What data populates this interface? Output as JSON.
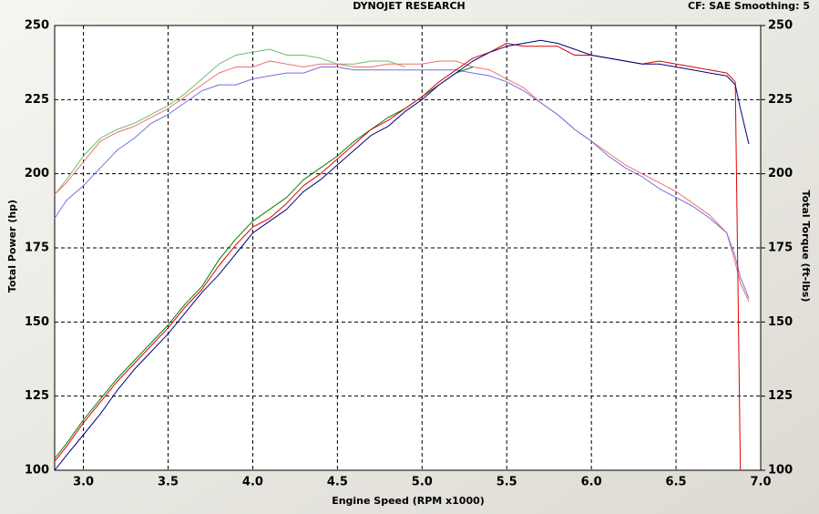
{
  "chart_data": {
    "type": "line",
    "title": "DYNOJET RESEARCH",
    "subtitle": "CF: SAE  Smoothing: 5",
    "x_label": "Engine Speed (RPM x1000)",
    "y_label": "Total Power (hp)",
    "y2_label": "Total Torque (ft-lbs)",
    "x": [
      2.83,
      2.9,
      3.0,
      3.1,
      3.2,
      3.3,
      3.4,
      3.5,
      3.6,
      3.7,
      3.8,
      3.9,
      4.0,
      4.1,
      4.2,
      4.3,
      4.4,
      4.5,
      4.6,
      4.7,
      4.8,
      4.9,
      5.0,
      5.1,
      5.2,
      5.3,
      5.4,
      5.5,
      5.6,
      5.7,
      5.8,
      5.9,
      6.0,
      6.1,
      6.2,
      6.3,
      6.4,
      6.5,
      6.6,
      6.7,
      6.8,
      6.85,
      6.88,
      6.93
    ],
    "xlim": [
      2.83,
      7.0
    ],
    "xticks": [
      {
        "value": 3,
        "label": "3.0"
      },
      3.5,
      {
        "value": 4,
        "label": "4.0"
      },
      4.5,
      {
        "value": 5,
        "label": "5.0"
      },
      5.5,
      {
        "value": 6,
        "label": "6.0"
      },
      6.5,
      {
        "value": 7,
        "label": "7.0"
      }
    ],
    "ylim": [
      100,
      250
    ],
    "yticks": [
      100,
      125,
      150,
      175,
      200,
      225,
      250
    ],
    "y2lim": [
      100,
      250
    ],
    "y2ticks": [
      100,
      125,
      150,
      175,
      200,
      225,
      250
    ],
    "grid": true,
    "series": [
      {
        "color": "#008000",
        "values": [
          104,
          109,
          117,
          124,
          131,
          137,
          143,
          149,
          156,
          162,
          171,
          178,
          184,
          188,
          192,
          198,
          202,
          206,
          211,
          215,
          219,
          222,
          226,
          230,
          234,
          236,
          null,
          null,
          null,
          null,
          null,
          null,
          null,
          null,
          null,
          null,
          null,
          null,
          null,
          null,
          null,
          null,
          null,
          null
        ]
      },
      {
        "color": "#e00000",
        "values": [
          103,
          108,
          116,
          123,
          130,
          136,
          142,
          148,
          155,
          161,
          169,
          176,
          182,
          185,
          190,
          196,
          200,
          205,
          210,
          215,
          218,
          222,
          226,
          231,
          235,
          239,
          241,
          244,
          243,
          243,
          243,
          240,
          240,
          239,
          238,
          237,
          238,
          237,
          236,
          235,
          234,
          231,
          100,
          null
        ]
      },
      {
        "color": "#000080",
        "values": [
          100,
          105,
          112,
          119,
          127,
          134,
          140,
          146,
          153,
          160,
          166,
          173,
          180,
          184,
          188,
          194,
          198,
          203,
          208,
          213,
          216,
          221,
          225,
          230,
          234,
          238,
          241,
          243,
          244,
          245,
          244,
          242,
          240,
          239,
          238,
          237,
          237,
          236,
          235,
          234,
          233,
          230,
          222,
          210
        ]
      },
      {
        "color": "#6cc06c",
        "axis": "y2",
        "values": [
          193,
          198,
          206,
          212,
          215,
          217,
          220,
          223,
          227,
          232,
          237,
          240,
          241,
          242,
          240,
          240,
          239,
          237,
          237,
          238,
          238,
          236,
          null,
          null,
          null,
          null,
          null,
          null,
          null,
          null,
          null,
          null,
          null,
          null,
          null,
          null,
          null,
          null,
          null,
          null,
          null,
          null,
          null,
          null
        ]
      },
      {
        "color": "#f07070",
        "axis": "y2",
        "values": [
          193,
          197,
          204,
          211,
          214,
          216,
          219,
          222,
          226,
          230,
          234,
          236,
          236,
          238,
          237,
          236,
          237,
          237,
          236,
          236,
          237,
          237,
          237,
          238,
          238,
          236,
          235,
          232,
          229,
          224,
          220,
          215,
          211,
          207,
          203,
          200,
          197,
          194,
          190,
          186,
          180,
          170,
          163,
          157
        ]
      },
      {
        "color": "#7070e0",
        "axis": "y2",
        "values": [
          185,
          191,
          196,
          202,
          208,
          212,
          217,
          220,
          224,
          228,
          230,
          230,
          232,
          233,
          234,
          234,
          236,
          236,
          235,
          235,
          235,
          235,
          235,
          235,
          235,
          234,
          233,
          231,
          228,
          224,
          220,
          215,
          211,
          206,
          202,
          199,
          195,
          192,
          189,
          185,
          180,
          172,
          165,
          158
        ]
      }
    ]
  }
}
